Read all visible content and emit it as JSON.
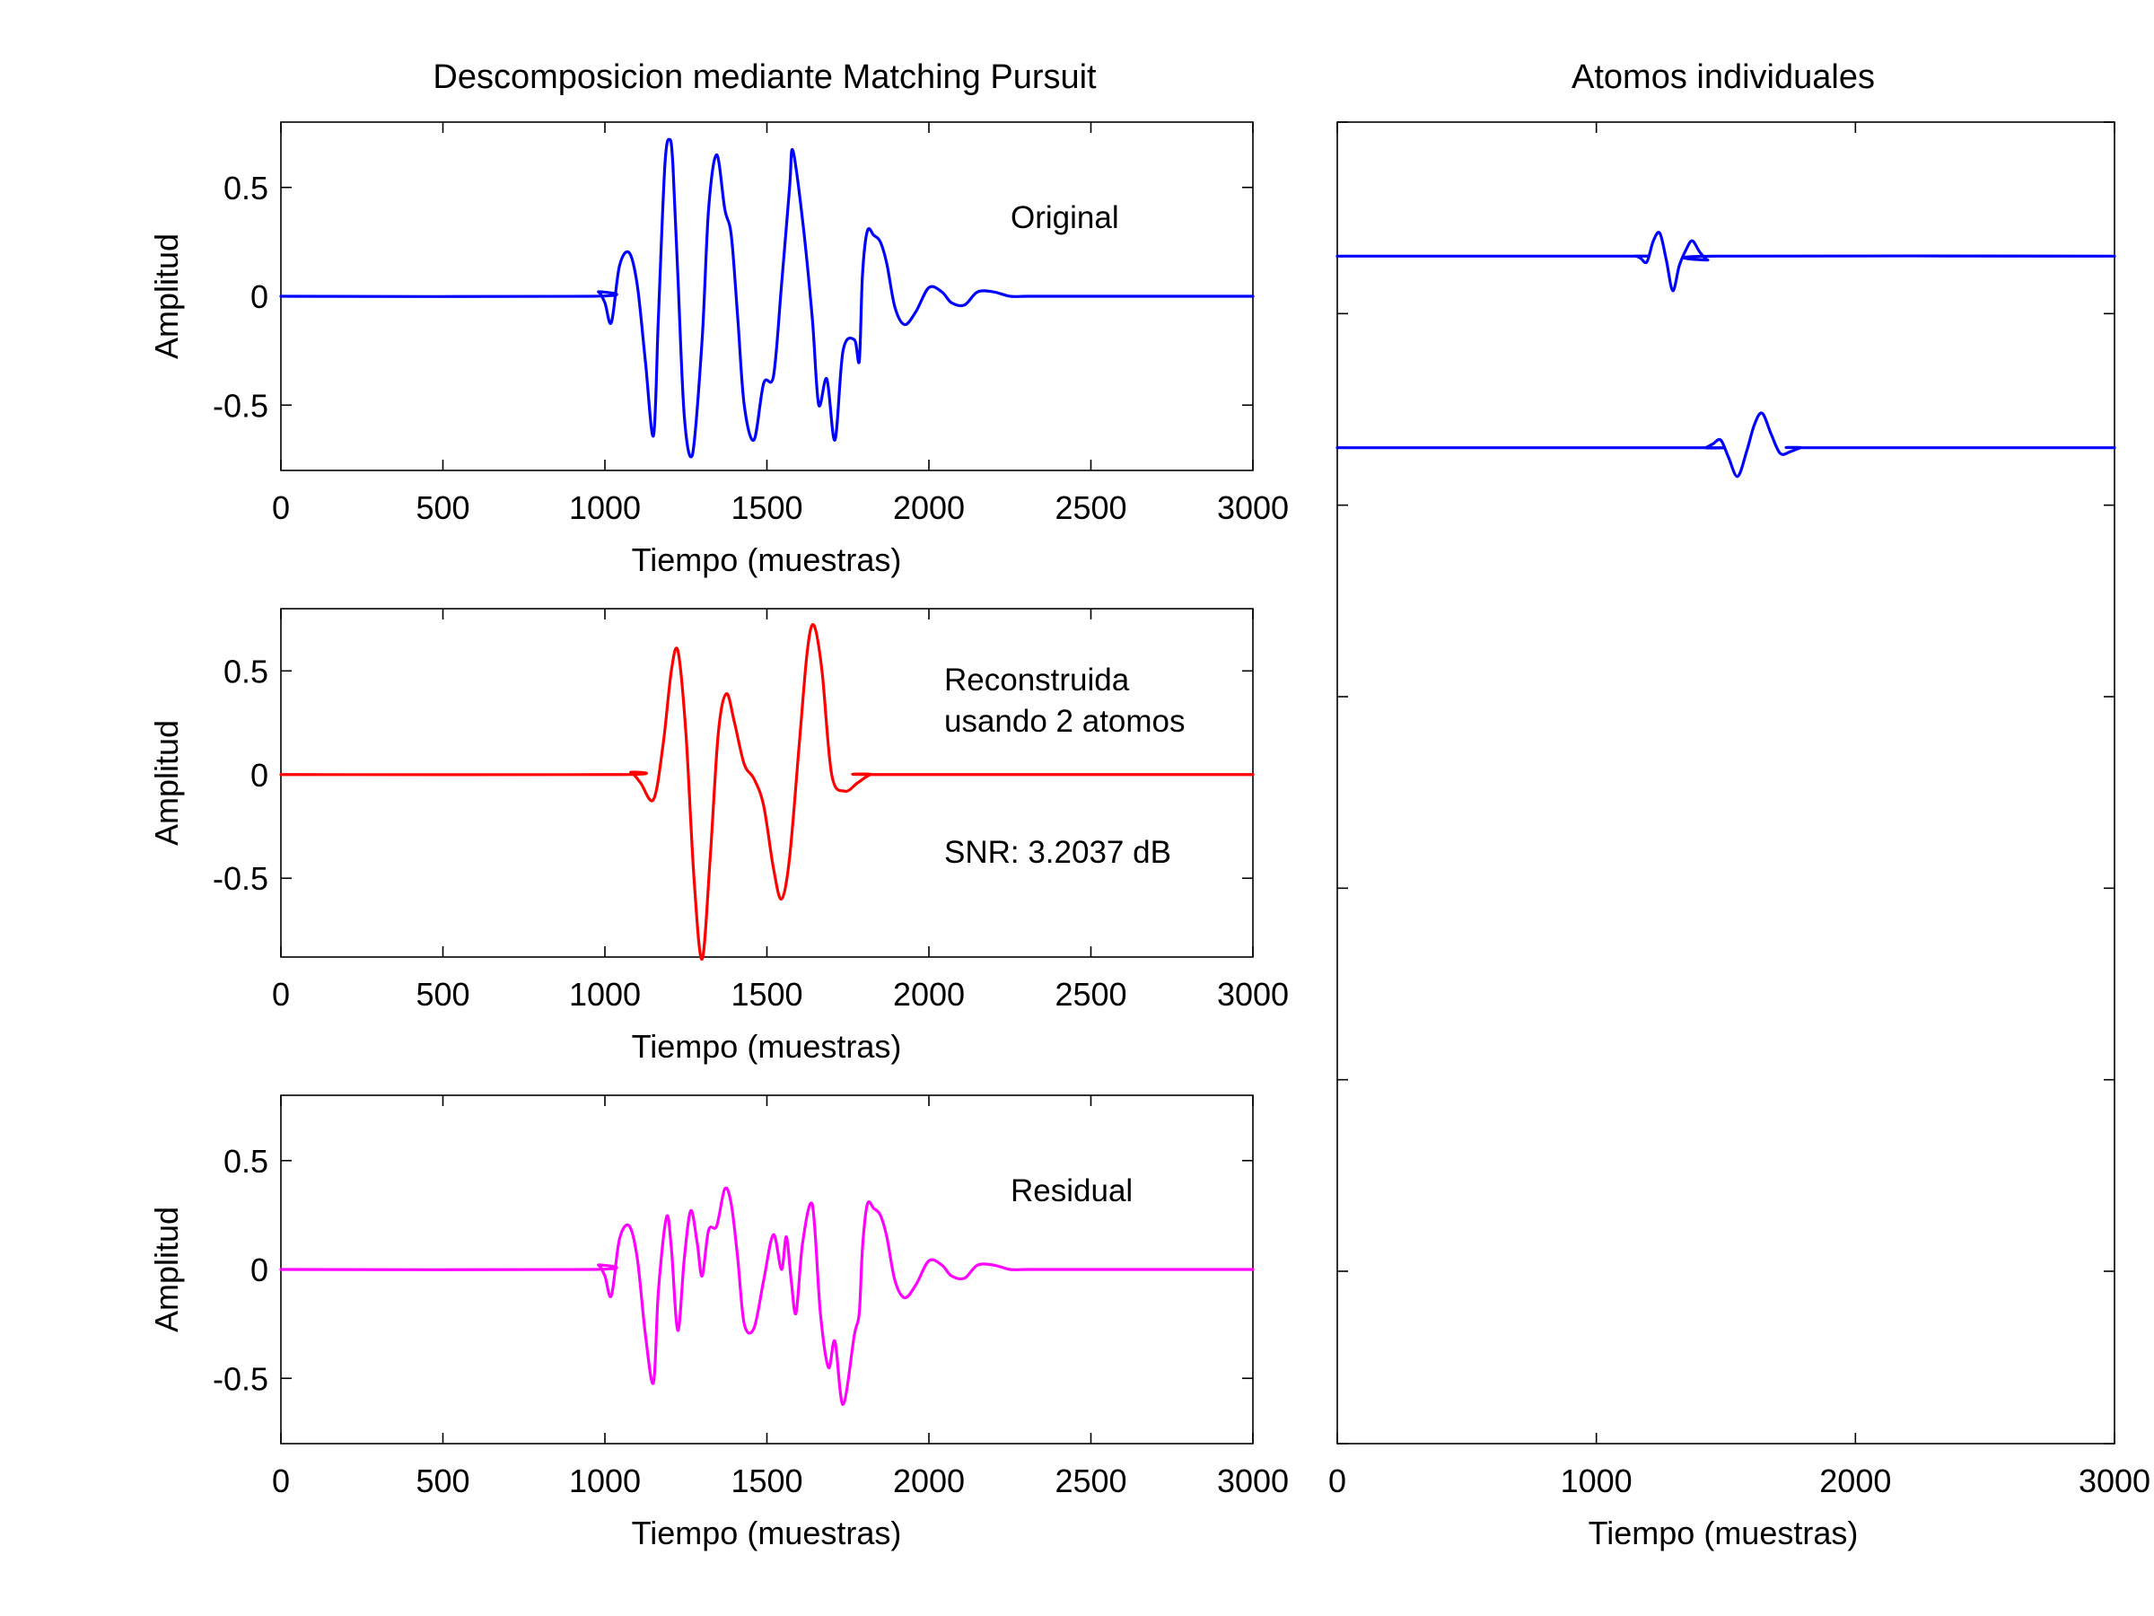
{
  "titles": {
    "left": "Descomposicion mediante Matching Pursuit",
    "right": "Atomos individuales"
  },
  "annotations": {
    "original": "Original",
    "reconstruida_1": "Reconstruida",
    "reconstruida_2": "usando 2 atomos",
    "snr": "SNR: 3.2037 dB",
    "residual": "Residual"
  },
  "colors": {
    "original": "#0000ff",
    "reconstruida": "#ff0000",
    "residual": "#ff00ff",
    "atoms": "#0000ff"
  },
  "chart_data": [
    {
      "id": "original",
      "type": "line",
      "xlabel": "Tiempo (muestras)",
      "ylabel": "Amplitud",
      "xlim": [
        0,
        3000
      ],
      "ylim": [
        -0.8,
        0.8
      ],
      "xticks": [
        0,
        500,
        1000,
        1500,
        2000,
        2500,
        3000
      ],
      "yticks": [
        0.5,
        0,
        -0.5
      ],
      "ytick_labels": [
        "0.5",
        "0",
        "-0.5"
      ],
      "series": [
        {
          "color": "#0000ff",
          "x": [
            0,
            960,
            980,
            1000,
            1020,
            1045,
            1075,
            1100,
            1125,
            1150,
            1165,
            1185,
            1200,
            1210,
            1225,
            1245,
            1270,
            1300,
            1320,
            1345,
            1370,
            1390,
            1410,
            1430,
            1460,
            1490,
            1520,
            1545,
            1570,
            1580,
            1610,
            1640,
            1660,
            1685,
            1710,
            1735,
            1770,
            1785,
            1795,
            1810,
            1830,
            1850,
            1870,
            1895,
            1925,
            1960,
            2000,
            2040,
            2070,
            2110,
            2150,
            2200,
            2250,
            2300,
            2360,
            2420,
            2500,
            2550,
            3000
          ],
          "y": [
            0,
            0,
            0.02,
            -0.03,
            -0.12,
            0.14,
            0.2,
            0.05,
            -0.3,
            -0.64,
            -0.1,
            0.6,
            0.72,
            0.6,
            0.1,
            -0.55,
            -0.73,
            -0.2,
            0.4,
            0.65,
            0.4,
            0.28,
            -0.1,
            -0.5,
            -0.66,
            -0.4,
            -0.37,
            0.05,
            0.5,
            0.67,
            0.35,
            -0.1,
            -0.5,
            -0.38,
            -0.66,
            -0.25,
            -0.2,
            -0.3,
            0.1,
            0.3,
            0.28,
            0.25,
            0.15,
            -0.05,
            -0.13,
            -0.07,
            0.04,
            0.02,
            -0.03,
            -0.04,
            0.02,
            0.02,
            0.0,
            0.0,
            0.0,
            0.0,
            0.0,
            0.0,
            0.0
          ]
        }
      ]
    },
    {
      "id": "reconstruida",
      "type": "line",
      "xlabel": "Tiempo (muestras)",
      "ylabel": "Amplitud",
      "xlim": [
        0,
        3000
      ],
      "ylim": [
        -0.88,
        0.8
      ],
      "xticks": [
        0,
        500,
        1000,
        1500,
        2000,
        2500,
        3000
      ],
      "yticks": [
        0.5,
        0,
        -0.5
      ],
      "ytick_labels": [
        "0.5",
        "0",
        "-0.5"
      ],
      "series": [
        {
          "color": "#ff0000",
          "x": [
            0,
            1040,
            1080,
            1110,
            1150,
            1180,
            1205,
            1225,
            1250,
            1275,
            1300,
            1325,
            1350,
            1375,
            1400,
            1430,
            1460,
            1490,
            1520,
            1545,
            1570,
            1600,
            1625,
            1645,
            1670,
            1700,
            1740,
            1780,
            1820,
            1860,
            3000
          ],
          "y": [
            0,
            0,
            0.01,
            -0.04,
            -0.12,
            0.15,
            0.5,
            0.6,
            0.2,
            -0.5,
            -0.89,
            -0.4,
            0.2,
            0.39,
            0.25,
            0.05,
            -0.02,
            -0.15,
            -0.45,
            -0.6,
            -0.4,
            0.15,
            0.6,
            0.72,
            0.5,
            0.0,
            -0.08,
            -0.04,
            0.0,
            0.0,
            0.0
          ]
        }
      ]
    },
    {
      "id": "residual",
      "type": "line",
      "xlabel": "Tiempo (muestras)",
      "ylabel": "Amplitud",
      "xlim": [
        0,
        3000
      ],
      "ylim": [
        -0.8,
        0.8
      ],
      "xticks": [
        0,
        500,
        1000,
        1500,
        2000,
        2500,
        3000
      ],
      "yticks": [
        0.5,
        0,
        -0.5
      ],
      "ytick_labels": [
        "0.5",
        "0",
        "-0.5"
      ],
      "series": [
        {
          "color": "#ff00ff",
          "x": [
            0,
            960,
            980,
            1000,
            1020,
            1045,
            1075,
            1100,
            1125,
            1150,
            1165,
            1190,
            1205,
            1225,
            1245,
            1265,
            1285,
            1300,
            1320,
            1345,
            1370,
            1390,
            1410,
            1430,
            1460,
            1490,
            1520,
            1545,
            1560,
            1575,
            1590,
            1610,
            1640,
            1665,
            1690,
            1710,
            1735,
            1770,
            1785,
            1795,
            1810,
            1830,
            1850,
            1870,
            1895,
            1925,
            1960,
            2000,
            2040,
            2070,
            2110,
            2150,
            2200,
            2250,
            2300,
            2360,
            2420,
            2500,
            3000
          ],
          "y": [
            0,
            0,
            0.02,
            -0.03,
            -0.12,
            0.14,
            0.2,
            0.05,
            -0.3,
            -0.52,
            -0.1,
            0.24,
            0.1,
            -0.28,
            0.05,
            0.27,
            0.12,
            -0.03,
            0.18,
            0.2,
            0.37,
            0.3,
            0.05,
            -0.25,
            -0.27,
            -0.05,
            0.16,
            0.0,
            0.15,
            -0.05,
            -0.2,
            0.12,
            0.3,
            -0.2,
            -0.45,
            -0.33,
            -0.62,
            -0.3,
            -0.2,
            0.1,
            0.3,
            0.28,
            0.25,
            0.15,
            -0.05,
            -0.13,
            -0.07,
            0.04,
            0.02,
            -0.03,
            -0.04,
            0.02,
            0.02,
            0.0,
            0.0,
            0.0,
            0.0,
            0.0,
            0.0
          ]
        }
      ]
    },
    {
      "id": "atomos",
      "type": "line",
      "xlabel": "Tiempo (muestras)",
      "ylabel": "",
      "xlim": [
        0,
        3000
      ],
      "ylim": [
        -6.2,
        0.7
      ],
      "xticks": [
        0,
        1000,
        2000,
        3000
      ],
      "yticks": [
        0.7,
        -0.3,
        -1.3,
        -2.3,
        -3.3,
        -4.3,
        -5.3,
        -6.2
      ],
      "ytick_labels": [],
      "series": [
        {
          "color": "#0000ff",
          "x": [
            0,
            1100,
            1150,
            1170,
            1195,
            1220,
            1245,
            1270,
            1295,
            1320,
            1345,
            1370,
            1400,
            1430,
            1460,
            3000
          ],
          "y": [
            0,
            0,
            0,
            -0.01,
            -0.03,
            0.08,
            0.12,
            -0.02,
            -0.18,
            -0.05,
            0.03,
            0.08,
            0.02,
            -0.02,
            0,
            0
          ]
        },
        {
          "color": "#0000ff",
          "x": [
            0,
            1380,
            1420,
            1450,
            1480,
            1510,
            1545,
            1580,
            1610,
            1640,
            1675,
            1710,
            1750,
            1790,
            1830,
            3000
          ],
          "y": [
            -1,
            -1,
            -1,
            -0.98,
            -0.96,
            -1.05,
            -1.15,
            -1.02,
            -0.88,
            -0.82,
            -0.93,
            -1.03,
            -1.02,
            -1.0,
            -1.0,
            -1.0
          ]
        }
      ]
    }
  ]
}
